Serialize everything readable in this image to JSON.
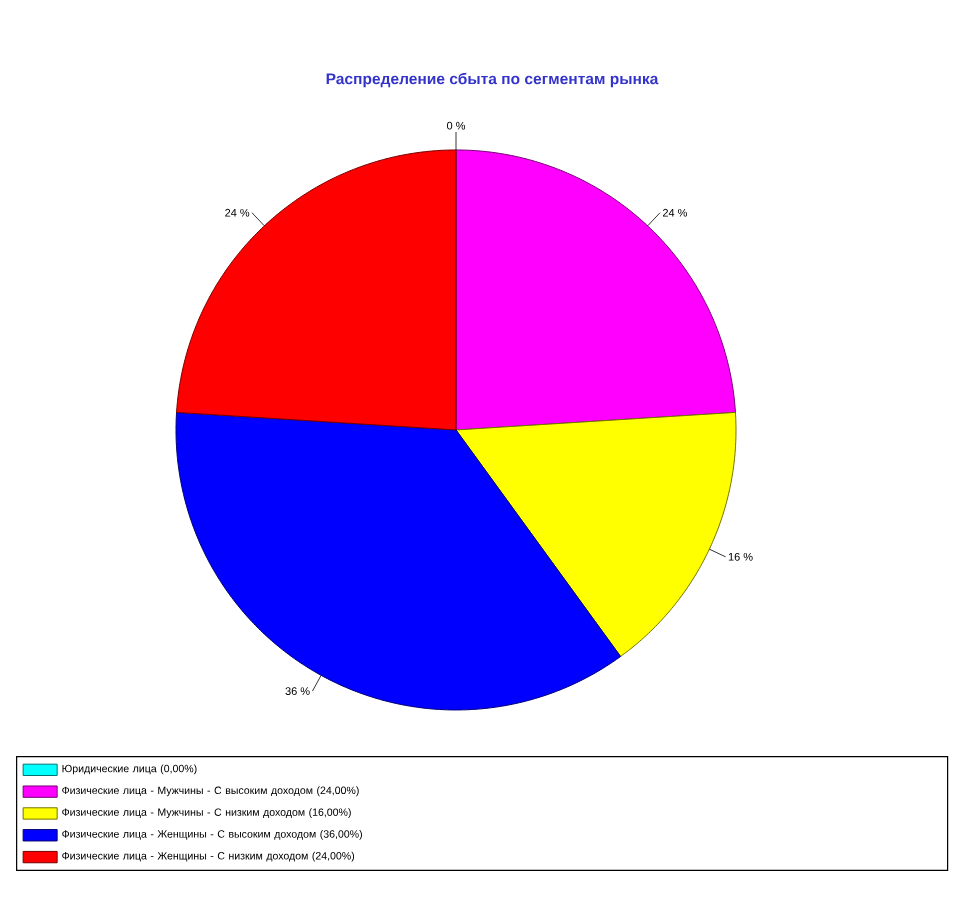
{
  "chart_data": {
    "type": "pie",
    "title": "Распределение сбыта по сегментам рынка",
    "categories": [
      "Юридические лица (0,00%)",
      "Физические лица - Мужчины - С высоким доходом (24,00%)",
      "Физические лица - Мужчины - С низким доходом (16,00%)",
      "Физические лица - Женщины - С высоким доходом (36,00%)",
      "Физические лица - Женщины - С низким доходом (24,00%)"
    ],
    "values": [
      0,
      24,
      16,
      36,
      24
    ],
    "colors": [
      "#00ffff",
      "#ff00ff",
      "#ffff00",
      "#0000ff",
      "#ff0000"
    ],
    "value_labels": [
      "0 %",
      "24 %",
      "16 %",
      "36 %",
      "24 %"
    ],
    "legend": "bottom"
  }
}
